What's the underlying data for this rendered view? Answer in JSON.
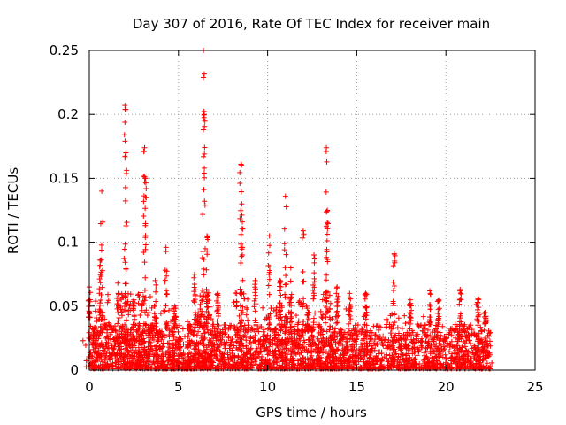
{
  "chart_data": {
    "type": "scatter",
    "title": "Day 307 of 2016, Rate Of TEC Index for receiver main",
    "xlabel": "GPS time / hours",
    "ylabel": "ROTI / TECUs",
    "xlim": [
      0,
      25
    ],
    "ylim": [
      0,
      0.25
    ],
    "x_ticks": [
      0,
      5,
      10,
      15,
      20,
      25
    ],
    "x_tick_labels": [
      "0",
      "5",
      "10",
      "15",
      "20",
      "25"
    ],
    "y_ticks": [
      0,
      0.05,
      0.1,
      0.15,
      0.2,
      0.25
    ],
    "y_tick_labels": [
      "0",
      "0.05",
      "0.1",
      "0.15",
      "0.2",
      "0.25"
    ],
    "grid": true,
    "marker": "+",
    "marker_color": "#ff0000",
    "data_extent_hours": [
      0,
      22.5
    ],
    "background": {
      "count": 2200,
      "typical_max": 0.035,
      "floor": 0.001
    },
    "peaks": [
      {
        "x": 0.0,
        "y": 0.065
      },
      {
        "x": 0.6,
        "y": 0.086
      },
      {
        "x": 0.7,
        "y": 0.14
      },
      {
        "x": 1.6,
        "y": 0.068
      },
      {
        "x": 2.0,
        "y": 0.207
      },
      {
        "x": 2.05,
        "y": 0.17
      },
      {
        "x": 2.5,
        "y": 0.055
      },
      {
        "x": 3.1,
        "y": 0.174
      },
      {
        "x": 3.15,
        "y": 0.15
      },
      {
        "x": 3.7,
        "y": 0.07
      },
      {
        "x": 4.3,
        "y": 0.096
      },
      {
        "x": 4.8,
        "y": 0.05
      },
      {
        "x": 5.9,
        "y": 0.075
      },
      {
        "x": 6.4,
        "y": 0.25
      },
      {
        "x": 6.45,
        "y": 0.2
      },
      {
        "x": 6.6,
        "y": 0.105
      },
      {
        "x": 7.2,
        "y": 0.06
      },
      {
        "x": 8.5,
        "y": 0.161
      },
      {
        "x": 8.55,
        "y": 0.13
      },
      {
        "x": 9.3,
        "y": 0.07
      },
      {
        "x": 10.1,
        "y": 0.105
      },
      {
        "x": 10.7,
        "y": 0.07
      },
      {
        "x": 11.0,
        "y": 0.136
      },
      {
        "x": 11.3,
        "y": 0.08
      },
      {
        "x": 12.0,
        "y": 0.109
      },
      {
        "x": 12.6,
        "y": 0.09
      },
      {
        "x": 13.3,
        "y": 0.174
      },
      {
        "x": 13.35,
        "y": 0.125
      },
      {
        "x": 13.9,
        "y": 0.065
      },
      {
        "x": 14.6,
        "y": 0.06
      },
      {
        "x": 15.5,
        "y": 0.06
      },
      {
        "x": 17.1,
        "y": 0.091
      },
      {
        "x": 18.0,
        "y": 0.055
      },
      {
        "x": 19.1,
        "y": 0.062
      },
      {
        "x": 19.6,
        "y": 0.055
      },
      {
        "x": 20.8,
        "y": 0.063
      },
      {
        "x": 21.8,
        "y": 0.056
      },
      {
        "x": 22.2,
        "y": 0.045
      }
    ]
  }
}
